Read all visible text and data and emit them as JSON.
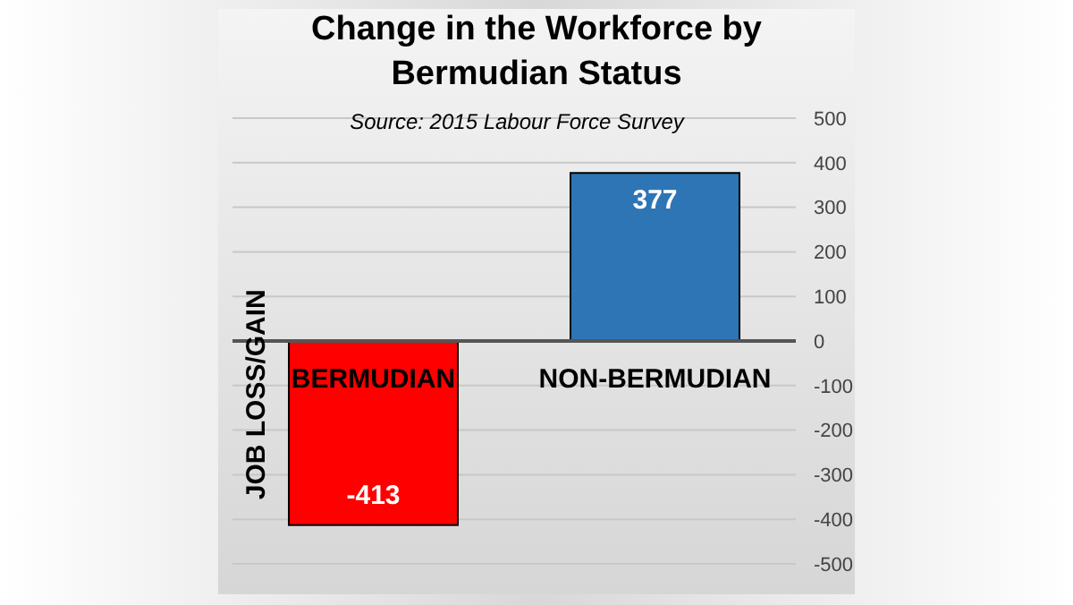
{
  "chart_data": {
    "type": "bar",
    "title": "Change in the Workforce by Bermudian Status",
    "annotations": [
      "Source: 2015 Labour Force Survey"
    ],
    "ylabel": "JOB LOSS/GAIN",
    "categories": [
      "BERMUDIAN",
      "NON-BERMUDIAN"
    ],
    "values": [
      -413,
      377
    ],
    "colors": [
      "#ff0000",
      "#2e75b6"
    ],
    "ylim": [
      -500,
      500
    ],
    "yticks": [
      -500,
      -400,
      -300,
      -200,
      -100,
      0,
      100,
      200,
      300,
      400,
      500
    ],
    "grid": "y",
    "data_labels": true
  }
}
